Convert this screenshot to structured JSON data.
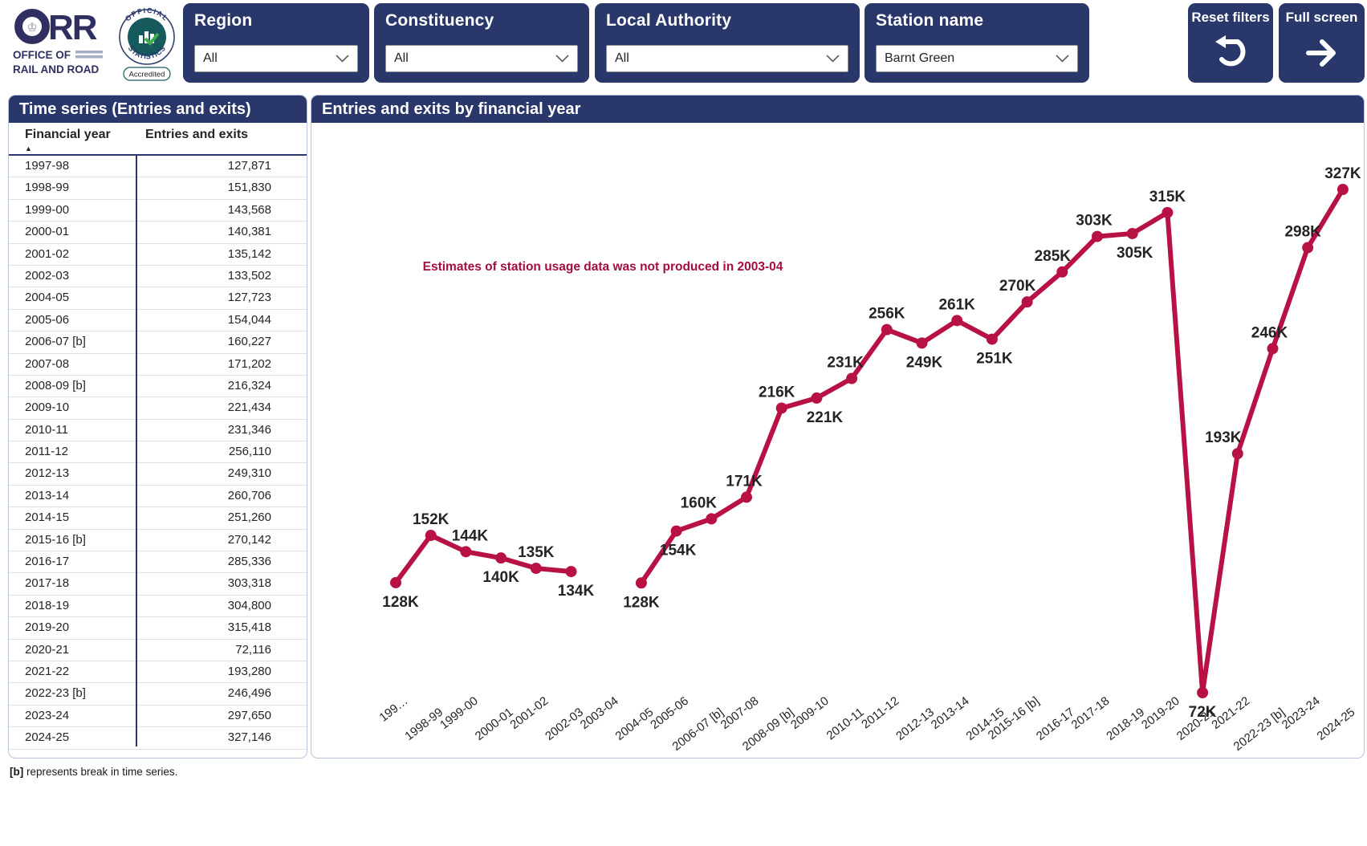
{
  "header": {
    "logo": {
      "acronym_rr": "RR",
      "org_line1": "OFFICE OF",
      "org_line2": "RAIL AND ROAD"
    },
    "badge": {
      "arc_top": "OFFICIAL",
      "arc_bottom": "STATISTICS",
      "accredited_label": "Accredited"
    },
    "filters": {
      "region": {
        "label": "Region",
        "value": "All"
      },
      "constituency": {
        "label": "Constituency",
        "value": "All"
      },
      "local_authority": {
        "label": "Local Authority",
        "value": "All"
      },
      "station_name": {
        "label": "Station name",
        "value": "Barnt Green"
      }
    },
    "reset_button_label": "Reset filters",
    "fullscreen_button_label": "Full screen"
  },
  "table_panel": {
    "title": "Time series (Entries and exits)",
    "columns": {
      "year": "Financial year",
      "value": "Entries and exits"
    },
    "sort_indicator": "▲",
    "rows": [
      {
        "year": "1997-98",
        "value": "127,871"
      },
      {
        "year": "1998-99",
        "value": "151,830"
      },
      {
        "year": "1999-00",
        "value": "143,568"
      },
      {
        "year": "2000-01",
        "value": "140,381"
      },
      {
        "year": "2001-02",
        "value": "135,142"
      },
      {
        "year": "2002-03",
        "value": "133,502"
      },
      {
        "year": "2004-05",
        "value": "127,723"
      },
      {
        "year": "2005-06",
        "value": "154,044"
      },
      {
        "year": "2006-07 [b]",
        "value": "160,227"
      },
      {
        "year": "2007-08",
        "value": "171,202"
      },
      {
        "year": "2008-09 [b]",
        "value": "216,324"
      },
      {
        "year": "2009-10",
        "value": "221,434"
      },
      {
        "year": "2010-11",
        "value": "231,346"
      },
      {
        "year": "2011-12",
        "value": "256,110"
      },
      {
        "year": "2012-13",
        "value": "249,310"
      },
      {
        "year": "2013-14",
        "value": "260,706"
      },
      {
        "year": "2014-15",
        "value": "251,260"
      },
      {
        "year": "2015-16 [b]",
        "value": "270,142"
      },
      {
        "year": "2016-17",
        "value": "285,336"
      },
      {
        "year": "2017-18",
        "value": "303,318"
      },
      {
        "year": "2018-19",
        "value": "304,800"
      },
      {
        "year": "2019-20",
        "value": "315,418"
      },
      {
        "year": "2020-21",
        "value": "72,116"
      },
      {
        "year": "2021-22",
        "value": "193,280"
      },
      {
        "year": "2022-23 [b]",
        "value": "246,496"
      },
      {
        "year": "2023-24",
        "value": "297,650"
      },
      {
        "year": "2024-25",
        "value": "327,146"
      }
    ]
  },
  "chart_panel": {
    "title": "Entries and exits by financial year"
  },
  "chart_data": {
    "type": "line",
    "title": "Entries and exits by financial year",
    "categories": [
      "1997-98",
      "1998-99",
      "1999-00",
      "2000-01",
      "2001-02",
      "2002-03",
      "2003-04",
      "2004-05",
      "2005-06",
      "2006-07 [b]",
      "2007-08",
      "2008-09 [b]",
      "2009-10",
      "2010-11",
      "2011-12",
      "2012-13",
      "2013-14",
      "2014-15",
      "2015-16 [b]",
      "2016-17",
      "2017-18",
      "2018-19",
      "2019-20",
      "2020-21",
      "2021-22",
      "2022-23 [b]",
      "2023-24",
      "2024-25"
    ],
    "x_axis_labels": [
      "199…",
      "1998-99",
      "1999-00",
      "2000-01",
      "2001-02",
      "2002-03",
      "2003-04",
      "2004-05",
      "2005-06",
      "2006-07 [b]",
      "2007-08",
      "2008-09 [b]",
      "2009-10",
      "2010-11",
      "2011-12",
      "2012-13",
      "2013-14",
      "2014-15",
      "2015-16 [b]",
      "2016-17",
      "2017-18",
      "2018-19",
      "2019-20",
      "2020-21",
      "2021-22",
      "2022-23 [b]",
      "2023-24",
      "2024-25"
    ],
    "values": [
      127871,
      151830,
      143568,
      140381,
      135142,
      133502,
      null,
      127723,
      154044,
      160227,
      171202,
      216324,
      221434,
      231346,
      256110,
      249310,
      260706,
      251260,
      270142,
      285336,
      303318,
      304800,
      315418,
      72116,
      193280,
      246496,
      297650,
      327146
    ],
    "point_labels": [
      "128K",
      "152K",
      "144K",
      "140K",
      "135K",
      "134K",
      null,
      "128K",
      "154K",
      "160K",
      "171K",
      "216K",
      "221K",
      "231K",
      "256K",
      "249K",
      "261K",
      "251K",
      "270K",
      "285K",
      "303K",
      "305K",
      "315K",
      "72K",
      "193K",
      "246K",
      "298K",
      "327K"
    ],
    "label_side": [
      "below",
      "above",
      "above",
      "below",
      "above",
      "below",
      null,
      "below",
      "below",
      "above",
      "above",
      "above",
      "below",
      "above",
      "above",
      "below",
      "above",
      "below",
      "above",
      "above",
      "above",
      "below",
      "above",
      "below",
      "above",
      "above",
      "above",
      "above"
    ],
    "label_dx": [
      6,
      0,
      5,
      0,
      0,
      6,
      0,
      0,
      2,
      -16,
      -3,
      -6,
      10,
      -8,
      0,
      3,
      0,
      3,
      -12,
      -12,
      -4,
      3,
      0,
      0,
      -18,
      -4,
      -6,
      0
    ],
    "annotation": "Estimates of station usage data was not produced in 2003-04",
    "line_color": "#B81244",
    "annotation_color": "#A50D3C",
    "label_color": "#252423",
    "ylim": [
      0,
      360000
    ],
    "grid": false,
    "legend": false
  },
  "footnote": {
    "prefix": "[b]",
    "text": " represents break in time series."
  }
}
